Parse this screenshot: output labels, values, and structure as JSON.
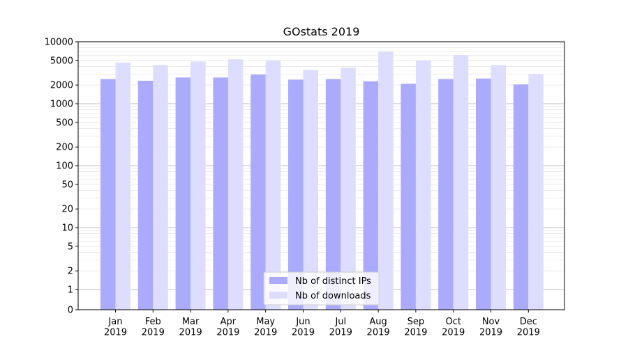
{
  "chart_data": {
    "type": "bar",
    "title": "GOstats 2019",
    "xlabel": "",
    "ylabel": "",
    "yscale": "symlog",
    "ylim": [
      0,
      10000
    ],
    "y_ticks": [
      0,
      1,
      2,
      5,
      10,
      20,
      50,
      100,
      200,
      500,
      1000,
      2000,
      5000,
      10000
    ],
    "categories": [
      [
        "Jan",
        "2019"
      ],
      [
        "Feb",
        "2019"
      ],
      [
        "Mar",
        "2019"
      ],
      [
        "Apr",
        "2019"
      ],
      [
        "May",
        "2019"
      ],
      [
        "Jun",
        "2019"
      ],
      [
        "Jul",
        "2019"
      ],
      [
        "Aug",
        "2019"
      ],
      [
        "Sep",
        "2019"
      ],
      [
        "Oct",
        "2019"
      ],
      [
        "Nov",
        "2019"
      ],
      [
        "Dec",
        "2019"
      ]
    ],
    "series": [
      {
        "name": "Nb of distinct IPs",
        "color": "#aaaaff",
        "values": [
          2500,
          2350,
          2650,
          2650,
          2950,
          2450,
          2500,
          2300,
          2100,
          2500,
          2550,
          2050
        ]
      },
      {
        "name": "Nb of downloads",
        "color": "#ddddff",
        "values": [
          4600,
          4200,
          4800,
          5200,
          5000,
          3500,
          3800,
          6900,
          5000,
          6100,
          4200,
          3000
        ]
      }
    ],
    "grid": true,
    "legend_position": "lower-center"
  }
}
